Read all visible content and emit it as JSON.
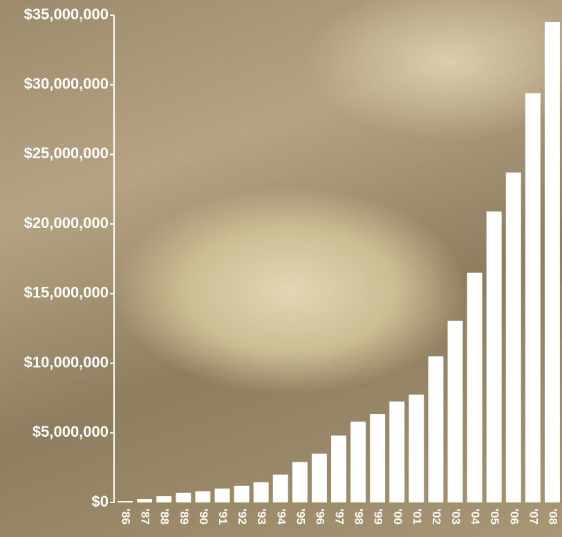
{
  "chart_data": {
    "type": "bar",
    "categories": [
      "'86",
      "'87",
      "'88",
      "'89",
      "'90",
      "'91",
      "'92",
      "'93",
      "'94",
      "'95",
      "'96",
      "'97",
      "'98",
      "'99",
      "'00",
      "'01",
      "'02",
      "'03",
      "'04",
      "'05",
      "'06",
      "'07",
      "'08"
    ],
    "values": [
      100000,
      250000,
      450000,
      700000,
      800000,
      1000000,
      1200000,
      1450000,
      2000000,
      2900000,
      3500000,
      4800000,
      5800000,
      6350000,
      7250000,
      7750000,
      10500000,
      13050000,
      16500000,
      20900000,
      23700000,
      29400000,
      34500000
    ],
    "color": "#ffffff",
    "ylim": [
      0,
      35000000
    ],
    "yticks": [
      {
        "value": 0,
        "label": "$0"
      },
      {
        "value": 5000000,
        "label": "$5,000,000"
      },
      {
        "value": 10000000,
        "label": "$10,000,000"
      },
      {
        "value": 15000000,
        "label": "$15,000,000"
      },
      {
        "value": 20000000,
        "label": "$20,000,000"
      },
      {
        "value": 25000000,
        "label": "$25,000,000"
      },
      {
        "value": 30000000,
        "label": "$30,000,000"
      },
      {
        "value": 35000000,
        "label": "$35,000,000"
      }
    ],
    "grid": false
  }
}
